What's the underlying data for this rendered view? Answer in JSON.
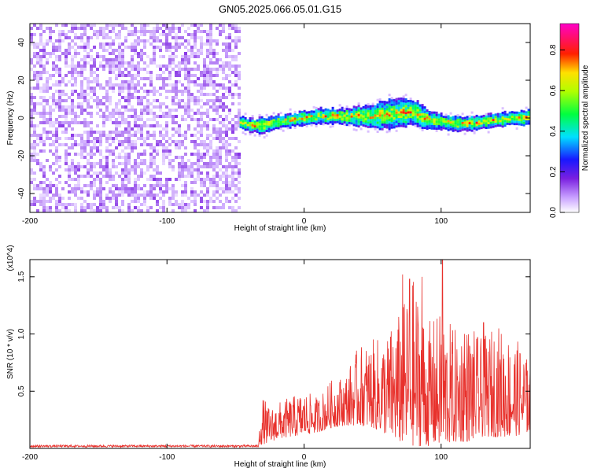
{
  "title": "GN05.2025.066.05.01.G15",
  "colors": {
    "line": "#e8312c",
    "axis": "#000000",
    "background": "#ffffff"
  },
  "chart_data": [
    {
      "type": "heatmap",
      "title": "GN05.2025.066.05.01.G15",
      "xlabel": "Height of straight line (km)",
      "ylabel": "Frequency (Hz)",
      "xlim": [
        -200,
        165
      ],
      "ylim": [
        -50,
        50
      ],
      "x_ticks": [
        "-200",
        "-100",
        "0",
        "100"
      ],
      "x_tick_values": [
        -200,
        -100,
        0,
        100
      ],
      "y_ticks": [
        "40",
        "20",
        "0",
        "-20",
        "-40"
      ],
      "y_tick_values": [
        40,
        20,
        0,
        -20,
        -40
      ],
      "colorbar": {
        "label": "Normalized spectral amplitude",
        "range": [
          0,
          0.93
        ],
        "ticks": [
          "0.0",
          "0.2",
          "0.4",
          "0.6",
          "0.8"
        ],
        "tick_values": [
          0,
          0.2,
          0.4,
          0.6,
          0.8
        ],
        "colormap": "rainbow (white-purple-blue-cyan-green-yellow-red-magenta)"
      },
      "regions": [
        {
          "name": "noise",
          "x_range": [
            -200,
            -47
          ],
          "frequency_range": [
            -50,
            50
          ],
          "amplitude_range": [
            0.02,
            0.15
          ]
        },
        {
          "name": "signal",
          "x_range": [
            -47,
            165
          ],
          "center_frequency": 0,
          "half_width_hz": [
            3,
            8
          ],
          "amplitude_range": [
            0.1,
            0.9
          ]
        }
      ],
      "signal_ridge": {
        "x": [
          -47,
          -40,
          -30,
          -20,
          -10,
          0,
          10,
          20,
          30,
          40,
          50,
          60,
          70,
          80,
          90,
          100,
          110,
          120,
          130,
          140,
          150,
          160,
          165
        ],
        "frequency": [
          -2,
          -4,
          -4,
          -2,
          -1,
          0,
          1,
          1,
          1,
          1,
          1,
          2,
          3,
          3,
          -1,
          -2,
          -3,
          -3,
          -2,
          -1,
          0,
          0,
          1
        ]
      }
    },
    {
      "type": "line",
      "xlabel": "Height of straight line (km)",
      "ylabel": "SNR (10 * v/v)",
      "y_multiplier": "(x10^4)",
      "xlim": [
        -200,
        165
      ],
      "ylim": [
        0,
        1.65
      ],
      "x_ticks": [
        "-200",
        "-100",
        "0",
        "100"
      ],
      "x_tick_values": [
        -200,
        -100,
        0,
        100
      ],
      "y_ticks": [
        "0.5",
        "1.0",
        "1.5"
      ],
      "y_tick_values": [
        0.5,
        1.0,
        1.5
      ],
      "envelope": {
        "x": [
          -200,
          -47,
          -33,
          -32,
          -25,
          -20,
          -10,
          0,
          10,
          20,
          30,
          40,
          50,
          60,
          70,
          80,
          90,
          100,
          110,
          120,
          130,
          140,
          150,
          160,
          165
        ],
        "lower": [
          0.01,
          0.01,
          0.01,
          0.03,
          0.05,
          0.08,
          0.1,
          0.12,
          0.14,
          0.18,
          0.2,
          0.2,
          0.18,
          0.12,
          0.05,
          0.02,
          0.02,
          0.03,
          0.05,
          0.06,
          0.1,
          0.1,
          0.1,
          0.12,
          0.15
        ],
        "upper": [
          0.03,
          0.03,
          0.03,
          0.5,
          0.35,
          0.4,
          0.45,
          0.5,
          0.45,
          0.6,
          0.65,
          0.9,
          0.95,
          1.0,
          1.2,
          1.5,
          1.1,
          1.2,
          1.05,
          1.1,
          0.95,
          1.1,
          1.0,
          0.9,
          0.7
        ]
      },
      "peaks": [
        {
          "x": 72,
          "y": 1.52
        },
        {
          "x": 77,
          "y": 1.48
        },
        {
          "x": 86,
          "y": 1.5
        },
        {
          "x": 101,
          "y": 1.65
        },
        {
          "x": 117,
          "y": 1.0
        },
        {
          "x": 131,
          "y": 1.1
        },
        {
          "x": 163,
          "y": 0.68
        }
      ]
    }
  ]
}
